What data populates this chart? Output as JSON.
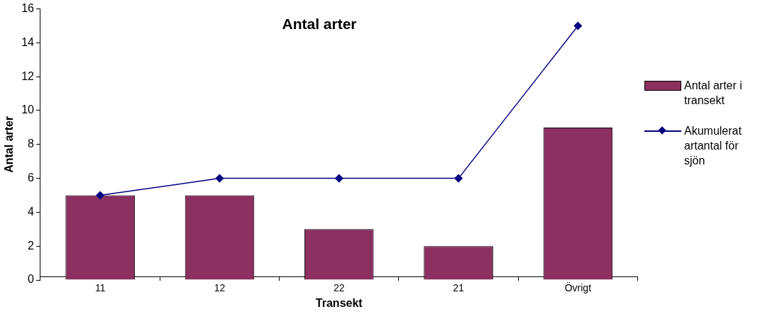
{
  "chart_data": {
    "type": "bar",
    "title": "Antal arter",
    "xlabel": "Transekt",
    "ylabel": "Antal arter",
    "categories": [
      "11",
      "12",
      "22",
      "21",
      "Övrigt"
    ],
    "series": [
      {
        "name": "Antal arter i transekt",
        "color": "#8b3060",
        "values": [
          5,
          5,
          3,
          2,
          9
        ]
      },
      {
        "name": "Akumulerat artantal för sjön",
        "type": "line",
        "color": "#000080",
        "values": [
          5,
          6,
          6,
          6,
          15
        ]
      }
    ],
    "ylim": [
      0,
      16
    ],
    "yticks": [
      0,
      2,
      4,
      6,
      8,
      10,
      12,
      14,
      16
    ],
    "grid": false,
    "legend": "right",
    "marker": "diamond",
    "line_style": "solid"
  }
}
